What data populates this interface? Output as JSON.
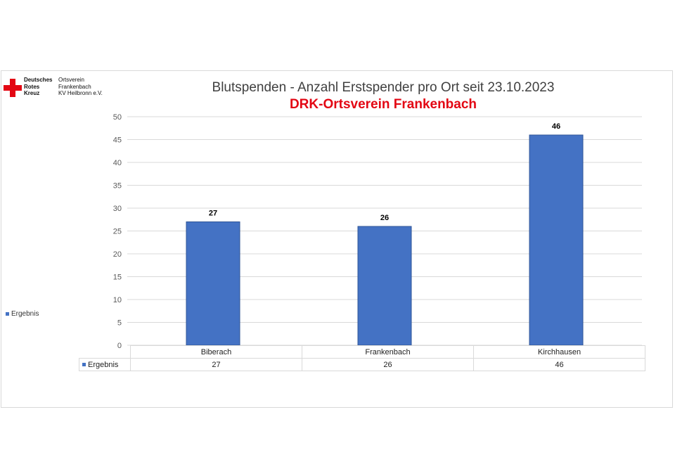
{
  "logo": {
    "org_lines": [
      "Deutsches",
      "Rotes",
      "Kreuz"
    ],
    "sub_lines": [
      "Ortsverein",
      "Frankenbach",
      "KV Heilbronn e.V."
    ],
    "cross_color": "#e30613"
  },
  "chart_data": {
    "type": "bar",
    "title": "Blutspenden - Anzahl Erstspender pro Ort seit 23.10.2023",
    "subtitle": "DRK-Ortsverein Frankenbach",
    "categories": [
      "Biberach",
      "Frankenbach",
      "Kirchhausen"
    ],
    "series": [
      {
        "name": "Ergebnis",
        "values": [
          27,
          26,
          46
        ],
        "color": "#4472c4"
      }
    ],
    "ylim": [
      0,
      50
    ],
    "yticks": [
      0,
      5,
      10,
      15,
      20,
      25,
      30,
      35,
      40,
      45,
      50
    ],
    "grid": true,
    "data_labels": [
      "27",
      "26",
      "46"
    ],
    "legend_position": "left",
    "data_table": true
  },
  "table": {
    "row_label": "Ergebnis",
    "values": [
      "27",
      "26",
      "46"
    ]
  }
}
